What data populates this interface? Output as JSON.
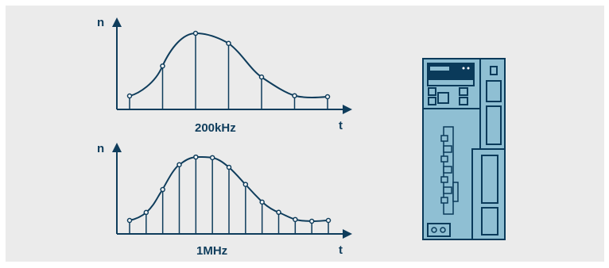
{
  "charts": [
    {
      "y_label": "n",
      "x_label": "t",
      "frequency_label": "200kHz",
      "sample_count": 7
    },
    {
      "y_label": "n",
      "x_label": "t",
      "frequency_label": "1MHz",
      "sample_count": 13
    }
  ],
  "colors": {
    "background": "#ebebeb",
    "line": "#0f3d5c",
    "device_fill": "#8fbfd3",
    "device_dark": "#0a3a5a"
  },
  "device": {
    "icon": "servo-drive-icon"
  }
}
